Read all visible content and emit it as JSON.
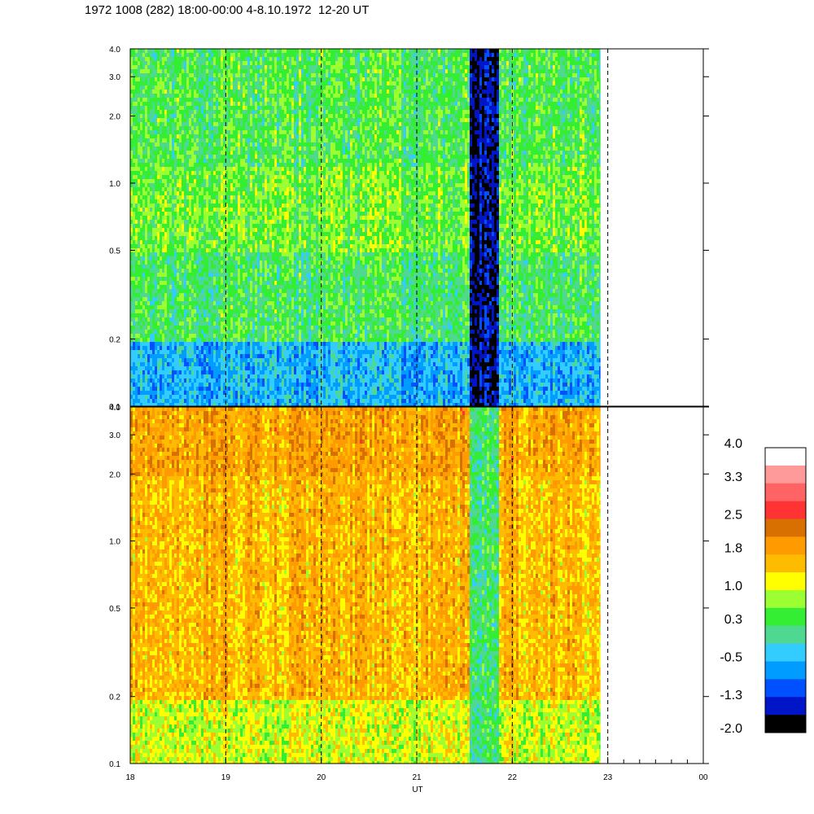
{
  "title": "1972 1008 (282) 18:00-00:00 4-8.10.1972  12-20 UT",
  "chart_data": [
    {
      "type": "heatmap",
      "panel": "upper",
      "x_axis": {
        "label": "UT",
        "range": [
          18,
          24
        ],
        "ticks": [
          "18",
          "19",
          "20",
          "21",
          "22",
          "23",
          "00"
        ],
        "data_until": 22.92
      },
      "y_axis": {
        "scale": "log",
        "range": [
          0.1,
          4.0
        ],
        "ticks": [
          "0.1",
          "0.2",
          "0.5",
          "1.0",
          "2.0",
          "3.0",
          "4.0"
        ]
      },
      "dashed_hour_lines": [
        19,
        20,
        21,
        22,
        23
      ],
      "dominant_values": [
        {
          "y_range": [
            0.1,
            0.2
          ],
          "value": -0.5
        },
        {
          "y_range": [
            0.2,
            0.5
          ],
          "value": 0.3
        },
        {
          "y_range": [
            0.5,
            1.2
          ],
          "value": 0.6
        },
        {
          "y_range": [
            1.2,
            4.0
          ],
          "value": 0.4
        }
      ],
      "low_feature": {
        "x_range": [
          21.55,
          21.85
        ],
        "value": -1.6
      }
    },
    {
      "type": "heatmap",
      "panel": "lower",
      "x_axis": {
        "label": "UT",
        "range": [
          18,
          24
        ],
        "ticks": [
          "18",
          "19",
          "20",
          "21",
          "22",
          "23",
          "00"
        ],
        "data_until": 22.92
      },
      "y_axis": {
        "scale": "log",
        "range": [
          0.1,
          4.0
        ],
        "ticks": [
          "0.1",
          "0.2",
          "0.5",
          "1.0",
          "2.0",
          "3.0",
          "4.0"
        ]
      },
      "dashed_hour_lines": [
        19,
        20,
        21,
        22,
        23
      ],
      "dominant_values": [
        {
          "y_range": [
            0.1,
            0.2
          ],
          "value": 1.0
        },
        {
          "y_range": [
            0.2,
            0.5
          ],
          "value": 1.6
        },
        {
          "y_range": [
            0.5,
            2.0
          ],
          "value": 1.6
        },
        {
          "y_range": [
            2.0,
            4.0
          ],
          "value": 1.8
        }
      ],
      "low_feature": {
        "x_range": [
          21.55,
          21.85
        ],
        "value": 0.2
      }
    }
  ],
  "colorbar": {
    "labels": [
      "4.0",
      "3.3",
      "2.5",
      "1.8",
      "1.0",
      "0.3",
      "-0.5",
      "-1.3",
      "-2.0"
    ],
    "colors": [
      "#ffffff",
      "#ff9a9a",
      "#ff6464",
      "#ff3333",
      "#d77000",
      "#ff9a00",
      "#ffbb00",
      "#ffff00",
      "#9cff32",
      "#33ee33",
      "#4fd890",
      "#33ccff",
      "#009cff",
      "#0050ff",
      "#0014c8",
      "#000000"
    ]
  }
}
